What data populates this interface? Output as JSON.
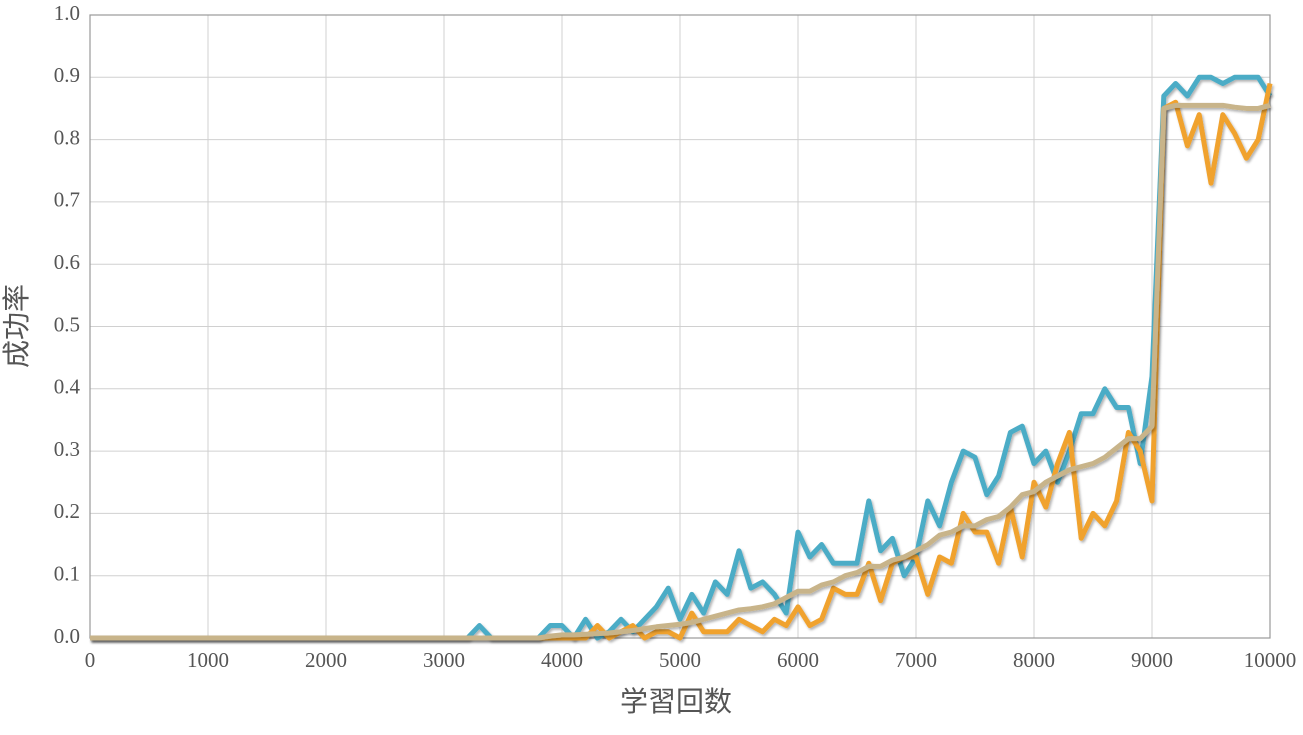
{
  "chart_data": {
    "type": "line",
    "xlabel": "学習回数",
    "ylabel": "成功率",
    "x": [
      0,
      100,
      200,
      300,
      400,
      500,
      600,
      700,
      800,
      900,
      1000,
      1100,
      1200,
      1300,
      1400,
      1500,
      1600,
      1700,
      1800,
      1900,
      2000,
      2100,
      2200,
      2300,
      2400,
      2500,
      2600,
      2700,
      2800,
      2900,
      3000,
      3100,
      3200,
      3300,
      3400,
      3500,
      3600,
      3700,
      3800,
      3900,
      4000,
      4100,
      4200,
      4300,
      4400,
      4500,
      4600,
      4700,
      4800,
      4900,
      5000,
      5100,
      5200,
      5300,
      5400,
      5500,
      5600,
      5700,
      5800,
      5900,
      6000,
      6100,
      6200,
      6300,
      6400,
      6500,
      6600,
      6700,
      6800,
      6900,
      7000,
      7100,
      7200,
      7300,
      7400,
      7500,
      7600,
      7700,
      7800,
      7900,
      8000,
      8100,
      8200,
      8300,
      8400,
      8500,
      8600,
      8700,
      8800,
      8900,
      9000,
      9100,
      9200,
      9300,
      9400,
      9500,
      9600,
      9700,
      9800,
      9900,
      10000
    ],
    "series": [
      {
        "color": "#4bacc6",
        "values": [
          0,
          0,
          0,
          0,
          0,
          0,
          0,
          0,
          0,
          0,
          0,
          0,
          0,
          0,
          0,
          0,
          0,
          0,
          0,
          0,
          0,
          0,
          0,
          0,
          0,
          0,
          0,
          0,
          0,
          0,
          0,
          0,
          0,
          0.02,
          0,
          0,
          0,
          0,
          0,
          0.02,
          0.02,
          0,
          0.03,
          0,
          0.01,
          0.03,
          0.01,
          0.03,
          0.05,
          0.08,
          0.03,
          0.07,
          0.04,
          0.09,
          0.07,
          0.14,
          0.08,
          0.09,
          0.07,
          0.04,
          0.17,
          0.13,
          0.15,
          0.12,
          0.12,
          0.12,
          0.22,
          0.14,
          0.16,
          0.1,
          0.13,
          0.22,
          0.18,
          0.25,
          0.3,
          0.29,
          0.23,
          0.26,
          0.33,
          0.34,
          0.28,
          0.3,
          0.25,
          0.3,
          0.36,
          0.36,
          0.4,
          0.37,
          0.37,
          0.28,
          0.42,
          0.87,
          0.89,
          0.87,
          0.9,
          0.9,
          0.89,
          0.9,
          0.9,
          0.9,
          0.87
        ]
      },
      {
        "color": "#f0a22e",
        "values": [
          0,
          0,
          0,
          0,
          0,
          0,
          0,
          0,
          0,
          0,
          0,
          0,
          0,
          0,
          0,
          0,
          0,
          0,
          0,
          0,
          0,
          0,
          0,
          0,
          0,
          0,
          0,
          0,
          0,
          0,
          0,
          0,
          0,
          0,
          0,
          0,
          0,
          0,
          0,
          0,
          0,
          0,
          0,
          0.02,
          0,
          0.01,
          0.02,
          0,
          0.01,
          0.01,
          0,
          0.04,
          0.01,
          0.01,
          0.01,
          0.03,
          0.02,
          0.01,
          0.03,
          0.02,
          0.05,
          0.02,
          0.03,
          0.08,
          0.07,
          0.07,
          0.12,
          0.06,
          0.12,
          0.13,
          0.13,
          0.07,
          0.13,
          0.12,
          0.2,
          0.17,
          0.17,
          0.12,
          0.21,
          0.13,
          0.25,
          0.21,
          0.28,
          0.33,
          0.16,
          0.2,
          0.18,
          0.22,
          0.33,
          0.3,
          0.22,
          0.85,
          0.86,
          0.79,
          0.84,
          0.73,
          0.84,
          0.81,
          0.77,
          0.8,
          0.89
        ]
      },
      {
        "color": "#c8b48a",
        "values": [
          0,
          0,
          0,
          0,
          0,
          0,
          0,
          0,
          0,
          0,
          0,
          0,
          0,
          0,
          0,
          0,
          0,
          0,
          0,
          0,
          0,
          0,
          0,
          0,
          0,
          0,
          0,
          0,
          0,
          0,
          0,
          0,
          0,
          0,
          0,
          0,
          0,
          0,
          0,
          0.003,
          0.005,
          0.005,
          0.006,
          0.007,
          0.008,
          0.01,
          0.012,
          0.015,
          0.018,
          0.02,
          0.022,
          0.025,
          0.03,
          0.035,
          0.04,
          0.045,
          0.047,
          0.05,
          0.055,
          0.065,
          0.075,
          0.075,
          0.085,
          0.09,
          0.1,
          0.105,
          0.115,
          0.115,
          0.125,
          0.13,
          0.14,
          0.15,
          0.165,
          0.17,
          0.18,
          0.18,
          0.19,
          0.195,
          0.21,
          0.23,
          0.235,
          0.25,
          0.26,
          0.27,
          0.275,
          0.28,
          0.29,
          0.305,
          0.32,
          0.32,
          0.34,
          0.85,
          0.855,
          0.855,
          0.855,
          0.855,
          0.855,
          0.852,
          0.85,
          0.85,
          0.855
        ]
      }
    ],
    "xlim": [
      0,
      10000
    ],
    "xticks": [
      0,
      1000,
      2000,
      3000,
      4000,
      5000,
      6000,
      7000,
      8000,
      9000,
      10000
    ],
    "ylim": [
      0,
      1
    ],
    "yticks": [
      {
        "value": 0,
        "label": "0.0"
      },
      0.1,
      0.2,
      0.3,
      0.4,
      0.5,
      0.6,
      0.7,
      0.8,
      0.9,
      {
        "value": 1,
        "label": "1.0"
      }
    ],
    "grid": true
  }
}
